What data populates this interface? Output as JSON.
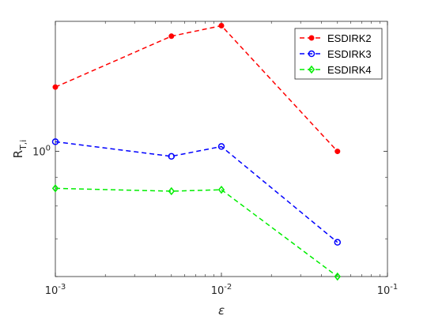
{
  "chart_data": {
    "type": "line",
    "title": "",
    "xlabel": "ε",
    "ylabel": "R",
    "ylabel_subscript": "T,i",
    "xscale": "log",
    "yscale": "log",
    "xlim": [
      0.001,
      0.1
    ],
    "ylim": [
      0.6,
      1.7
    ],
    "x_ticks": [
      {
        "value": 0.001,
        "base": "10",
        "exp": "-3"
      },
      {
        "value": 0.01,
        "base": "10",
        "exp": "-2"
      },
      {
        "value": 0.1,
        "base": "10",
        "exp": "-1"
      }
    ],
    "y_ticks": [
      {
        "value": 1.0,
        "base": "10",
        "exp": "0"
      }
    ],
    "grid": false,
    "legend_position": "top-right",
    "series": [
      {
        "name": "ESDIRK2",
        "color": "#ff0000",
        "marker": "dot",
        "x": [
          0.001,
          0.005,
          0.01,
          0.05
        ],
        "y": [
          1.3,
          1.6,
          1.67,
          1.0
        ]
      },
      {
        "name": "ESDIRK3",
        "color": "#0000ff",
        "marker": "circle",
        "x": [
          0.001,
          0.005,
          0.01,
          0.05
        ],
        "y": [
          1.04,
          0.98,
          1.02,
          0.69
        ]
      },
      {
        "name": "ESDIRK4",
        "color": "#00ee00",
        "marker": "diamond",
        "x": [
          0.001,
          0.005,
          0.01,
          0.05
        ],
        "y": [
          0.86,
          0.85,
          0.855,
          0.6
        ]
      }
    ]
  }
}
